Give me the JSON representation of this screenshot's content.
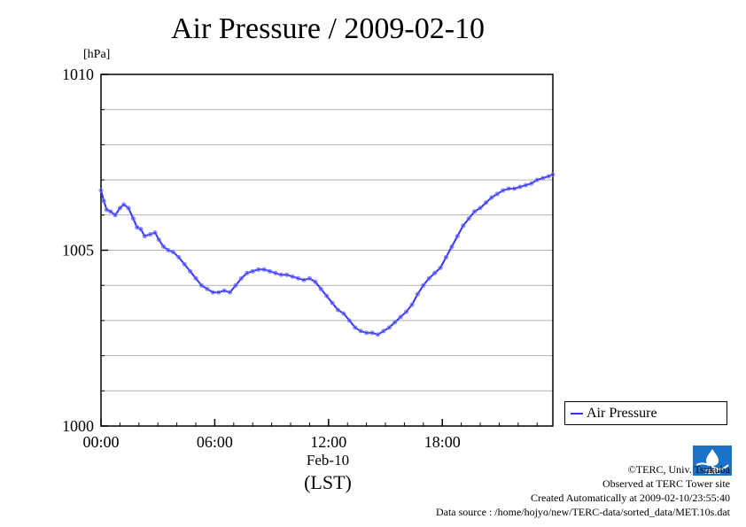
{
  "page": {
    "title": "Air Pressure / 2009-02-10",
    "unit": "[hPa]",
    "x_date_label": "Feb-10",
    "x_tz_label": "(LST)",
    "legend_label": "Air Pressure",
    "credits": [
      "©TERC, Univ. Tsukuba",
      "Observed at TERC Tower site",
      "Created Automatically at 2009-02-10/23:55:40",
      "Data source : /home/hojyo/new/TERC-data/sorted_data/MET.10s.dat"
    ],
    "logo_text": "TERC",
    "colors": {
      "line": "#3333ff",
      "marker": "#7777ff",
      "grid": "#b0b0b0"
    }
  },
  "chart_data": {
    "type": "line",
    "title": "Air Pressure / 2009-02-10",
    "ylabel": "[hPa]",
    "xlabel": "Feb-10 (LST)",
    "xlim": [
      0,
      23.83
    ],
    "ylim": [
      1000,
      1010
    ],
    "x_ticks": [
      0,
      6,
      12,
      18
    ],
    "x_tick_labels": [
      "00:00",
      "06:00",
      "12:00",
      "18:00"
    ],
    "y_ticks": [
      1000,
      1005,
      1010
    ],
    "y_tick_labels": [
      "1000",
      "1005",
      "1010"
    ],
    "grid": true,
    "legend": "lower-right outside",
    "series": [
      {
        "name": "Air Pressure",
        "x": [
          0.0,
          0.15,
          0.3,
          0.5,
          0.75,
          1.0,
          1.2,
          1.45,
          1.7,
          1.9,
          2.1,
          2.3,
          2.6,
          2.85,
          3.05,
          3.3,
          3.55,
          3.8,
          4.1,
          4.4,
          4.7,
          5.0,
          5.3,
          5.6,
          5.9,
          6.2,
          6.5,
          6.8,
          7.1,
          7.4,
          7.7,
          8.0,
          8.3,
          8.6,
          8.9,
          9.2,
          9.5,
          9.8,
          10.1,
          10.4,
          10.7,
          11.0,
          11.3,
          11.6,
          11.9,
          12.2,
          12.5,
          12.8,
          13.1,
          13.4,
          13.7,
          14.0,
          14.3,
          14.6,
          14.9,
          15.2,
          15.5,
          15.8,
          16.1,
          16.4,
          16.7,
          17.0,
          17.3,
          17.6,
          17.9,
          18.2,
          18.5,
          18.8,
          19.1,
          19.4,
          19.7,
          20.0,
          20.3,
          20.6,
          20.9,
          21.2,
          21.5,
          21.8,
          22.1,
          22.4,
          22.7,
          23.0,
          23.3,
          23.6,
          23.83
        ],
        "y": [
          1006.7,
          1006.4,
          1006.15,
          1006.1,
          1006.0,
          1006.2,
          1006.3,
          1006.2,
          1005.9,
          1005.65,
          1005.6,
          1005.4,
          1005.45,
          1005.5,
          1005.3,
          1005.1,
          1005.0,
          1004.95,
          1004.8,
          1004.6,
          1004.4,
          1004.2,
          1004.0,
          1003.9,
          1003.8,
          1003.8,
          1003.85,
          1003.8,
          1004.0,
          1004.2,
          1004.35,
          1004.4,
          1004.45,
          1004.45,
          1004.4,
          1004.35,
          1004.3,
          1004.3,
          1004.25,
          1004.2,
          1004.15,
          1004.2,
          1004.1,
          1003.9,
          1003.7,
          1003.5,
          1003.3,
          1003.2,
          1003.0,
          1002.8,
          1002.7,
          1002.65,
          1002.65,
          1002.6,
          1002.7,
          1002.8,
          1002.95,
          1003.1,
          1003.25,
          1003.45,
          1003.75,
          1004.0,
          1004.2,
          1004.35,
          1004.5,
          1004.8,
          1005.1,
          1005.4,
          1005.7,
          1005.9,
          1006.1,
          1006.2,
          1006.35,
          1006.5,
          1006.6,
          1006.7,
          1006.75,
          1006.75,
          1006.8,
          1006.85,
          1006.9,
          1007.0,
          1007.05,
          1007.1,
          1007.15
        ]
      }
    ]
  }
}
